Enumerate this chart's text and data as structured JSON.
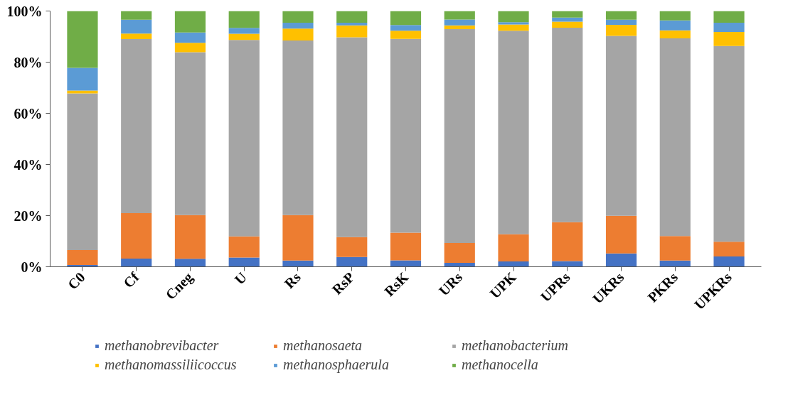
{
  "chart_data": {
    "type": "bar",
    "stacked": true,
    "categories": [
      "C0",
      "Cf",
      "Cneg",
      "U",
      "Rs",
      "RsP",
      "RsK",
      "URs",
      "UPK",
      "UPRs",
      "UKRs",
      "PKRs",
      "UPKRs"
    ],
    "series": [
      {
        "name": "methanobrevibacter",
        "color": "#4472c4",
        "values": [
          0.7,
          3.2,
          3.1,
          3.6,
          2.4,
          3.8,
          2.5,
          1.5,
          2.1,
          2.2,
          5.2,
          2.4,
          4.0
        ]
      },
      {
        "name": "methanosaeta",
        "color": "#ed7d31",
        "values": [
          5.8,
          17.8,
          17.1,
          8.3,
          17.8,
          7.8,
          10.8,
          7.8,
          10.6,
          15.2,
          14.7,
          9.6,
          5.8
        ]
      },
      {
        "name": "methanobacterium",
        "color": "#a5a5a5",
        "values": [
          61.3,
          68.0,
          63.7,
          76.8,
          68.3,
          78.1,
          75.8,
          83.6,
          79.6,
          76.1,
          70.4,
          77.3,
          76.5
        ]
      },
      {
        "name": "methanomassiliicoccus",
        "color": "#ffc000",
        "values": [
          1.1,
          2.2,
          3.7,
          2.4,
          4.6,
          4.7,
          3.2,
          1.5,
          2.4,
          2.3,
          4.3,
          3.1,
          5.5
        ]
      },
      {
        "name": "methanosphaerula",
        "color": "#5b9bd5",
        "values": [
          8.9,
          5.4,
          4.0,
          2.3,
          2.3,
          1.0,
          2.2,
          2.3,
          0.9,
          1.6,
          2.0,
          3.9,
          3.6
        ]
      },
      {
        "name": "methanocella",
        "color": "#70ad47",
        "values": [
          22.2,
          3.4,
          8.4,
          6.6,
          4.6,
          4.6,
          5.5,
          3.3,
          4.4,
          2.6,
          3.4,
          3.7,
          4.6
        ]
      }
    ],
    "ylim": [
      0,
      100
    ],
    "yticks": [
      {
        "value": 0,
        "label": "0%"
      },
      {
        "value": 20,
        "label": "20%"
      },
      {
        "value": 40,
        "label": "40%"
      },
      {
        "value": 60,
        "label": "60%"
      },
      {
        "value": 80,
        "label": "80%"
      },
      {
        "value": 100,
        "label": "100%"
      }
    ],
    "grid": false,
    "legend": "bottom"
  }
}
